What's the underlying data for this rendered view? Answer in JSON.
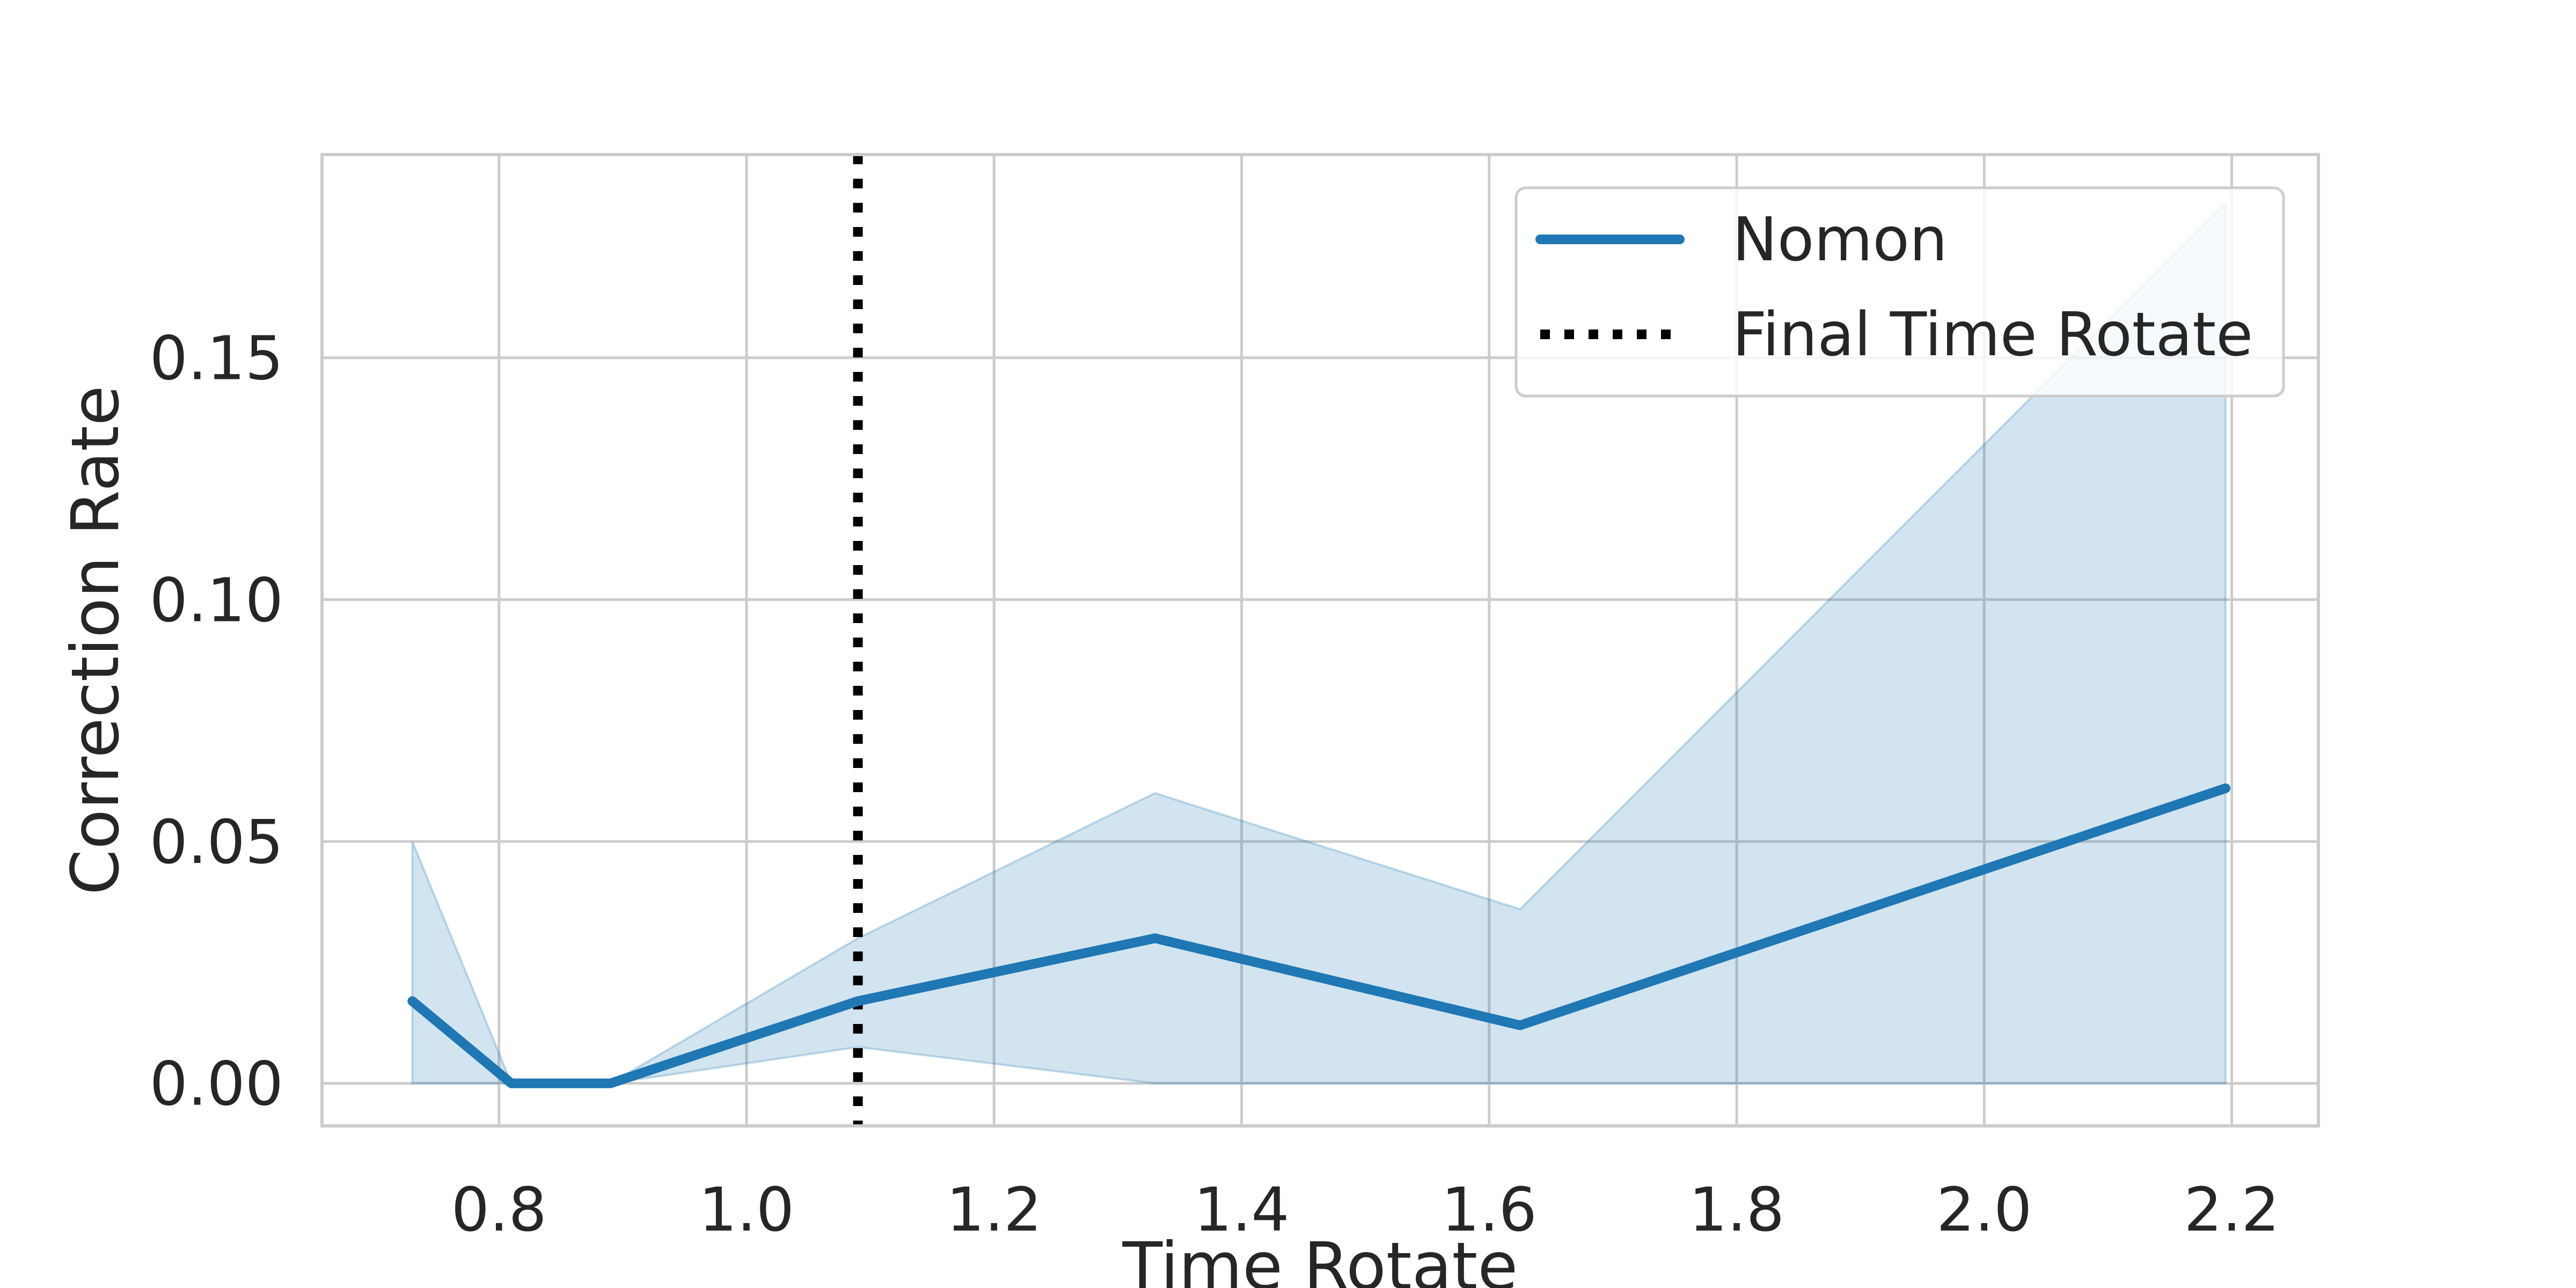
{
  "chart_data": {
    "type": "line",
    "xlabel": "Time Rotate",
    "ylabel": "Correction Rate",
    "xlim": [
      0.657,
      2.27
    ],
    "ylim": [
      -0.0088,
      0.192
    ],
    "xticks": [
      0.8,
      1.0,
      1.2,
      1.4,
      1.6,
      1.8,
      2.0,
      2.2
    ],
    "xtick_labels": [
      "0.8",
      "1.0",
      "1.2",
      "1.4",
      "1.6",
      "1.8",
      "2.0",
      "2.2"
    ],
    "yticks": [
      0.0,
      0.05,
      0.1,
      0.15
    ],
    "ytick_labels": [
      "0.00",
      "0.05",
      "0.10",
      "0.15"
    ],
    "grid": true,
    "legend_position": "top-right",
    "series": [
      {
        "name": "Nomon",
        "color": "#1f77b4",
        "x": [
          0.73,
          0.81,
          0.89,
          1.09,
          1.33,
          1.625,
          2.195
        ],
        "y": [
          0.017,
          0.0,
          0.0,
          0.017,
          0.03,
          0.012,
          0.061
        ],
        "ci_lower": [
          0.0,
          0.0,
          0.0,
          0.0075,
          0.0,
          0.0,
          0.0
        ],
        "ci_upper": [
          0.05,
          0.0,
          0.0,
          0.03,
          0.06,
          0.036,
          0.182
        ]
      }
    ],
    "vlines": [
      {
        "name": "Final Time Rotate",
        "x": 1.09,
        "color": "#000000",
        "style": "dotted"
      }
    ]
  }
}
